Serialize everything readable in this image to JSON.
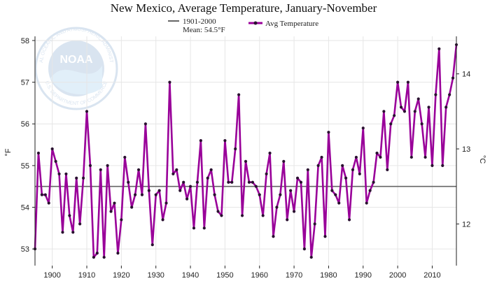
{
  "chart_data": {
    "type": "line",
    "title": "New Mexico, Average Temperature, January-November",
    "ylabel_left": "°F",
    "ylabel_right": "°C",
    "xlim": [
      1895,
      2017
    ],
    "ylim": [
      52.6,
      58.1
    ],
    "x_ticks": [
      1900,
      1910,
      1920,
      1930,
      1940,
      1950,
      1960,
      1970,
      1980,
      1990,
      2000,
      2010
    ],
    "y_ticks_left": [
      53,
      54,
      55,
      56,
      57,
      58
    ],
    "y_ticks_right": [
      12,
      13,
      14
    ],
    "grid": true,
    "legend_position": "top-center",
    "baseline": {
      "label_line1": "1901-2000",
      "label_line2": "Mean: 54.5°F",
      "value": 54.5,
      "color": "#666666"
    },
    "series": [
      {
        "name": "Avg Temperature",
        "color": "#990099",
        "x": [
          1895,
          1896,
          1897,
          1898,
          1899,
          1900,
          1901,
          1902,
          1903,
          1904,
          1905,
          1906,
          1907,
          1908,
          1909,
          1910,
          1911,
          1912,
          1913,
          1914,
          1915,
          1916,
          1917,
          1918,
          1919,
          1920,
          1921,
          1922,
          1923,
          1924,
          1925,
          1926,
          1927,
          1928,
          1929,
          1930,
          1931,
          1932,
          1933,
          1934,
          1935,
          1936,
          1937,
          1938,
          1939,
          1940,
          1941,
          1942,
          1943,
          1944,
          1945,
          1946,
          1947,
          1948,
          1949,
          1950,
          1951,
          1952,
          1953,
          1954,
          1955,
          1956,
          1957,
          1958,
          1959,
          1960,
          1961,
          1962,
          1963,
          1964,
          1965,
          1966,
          1967,
          1968,
          1969,
          1970,
          1971,
          1972,
          1973,
          1974,
          1975,
          1976,
          1977,
          1978,
          1979,
          1980,
          1981,
          1982,
          1983,
          1984,
          1985,
          1986,
          1987,
          1988,
          1989,
          1990,
          1991,
          1992,
          1993,
          1994,
          1995,
          1996,
          1997,
          1998,
          1999,
          2000,
          2001,
          2002,
          2003,
          2004,
          2005,
          2006,
          2007,
          2008,
          2009,
          2010,
          2011,
          2012,
          2013,
          2014,
          2015,
          2016,
          2017
        ],
        "values": [
          53.0,
          55.3,
          54.3,
          54.3,
          54.1,
          55.4,
          55.1,
          54.8,
          53.4,
          54.8,
          53.8,
          53.4,
          54.7,
          53.6,
          54.7,
          56.3,
          55.0,
          52.8,
          52.9,
          54.9,
          52.8,
          55.0,
          53.9,
          54.1,
          52.9,
          53.7,
          55.2,
          54.6,
          54.0,
          54.3,
          54.9,
          54.3,
          56.0,
          54.4,
          53.1,
          54.3,
          54.4,
          53.7,
          54.1,
          57.0,
          54.8,
          54.9,
          54.4,
          54.6,
          54.2,
          54.5,
          53.5,
          54.6,
          55.6,
          53.5,
          54.7,
          54.9,
          54.3,
          53.9,
          53.8,
          55.6,
          54.6,
          54.6,
          55.4,
          56.7,
          53.8,
          55.1,
          54.6,
          54.6,
          54.5,
          54.3,
          53.8,
          54.8,
          55.3,
          53.3,
          54.0,
          54.3,
          55.1,
          53.7,
          54.4,
          53.9,
          54.7,
          54.6,
          53.0,
          54.9,
          52.8,
          53.6,
          55.0,
          55.2,
          53.3,
          55.8,
          54.4,
          54.3,
          54.1,
          55.0,
          54.7,
          53.7,
          54.9,
          55.2,
          54.8,
          55.9,
          54.1,
          54.4,
          54.6,
          55.3,
          55.2,
          56.3,
          54.9,
          56.0,
          56.2,
          57.0,
          56.4,
          56.3,
          57.0,
          55.2,
          56.3,
          56.6,
          56.0,
          55.2,
          56.4,
          55.0,
          56.7,
          57.8,
          55.0,
          56.4,
          56.7,
          57.1,
          57.9
        ]
      }
    ]
  },
  "watermark": {
    "arc_text_top": "NATIONAL OCEANIC AND ATMOSPHERIC ADMINISTRATION",
    "arc_text_bottom": "U.S. DEPARTMENT OF COMMERCE",
    "center_text": "NOAA"
  }
}
